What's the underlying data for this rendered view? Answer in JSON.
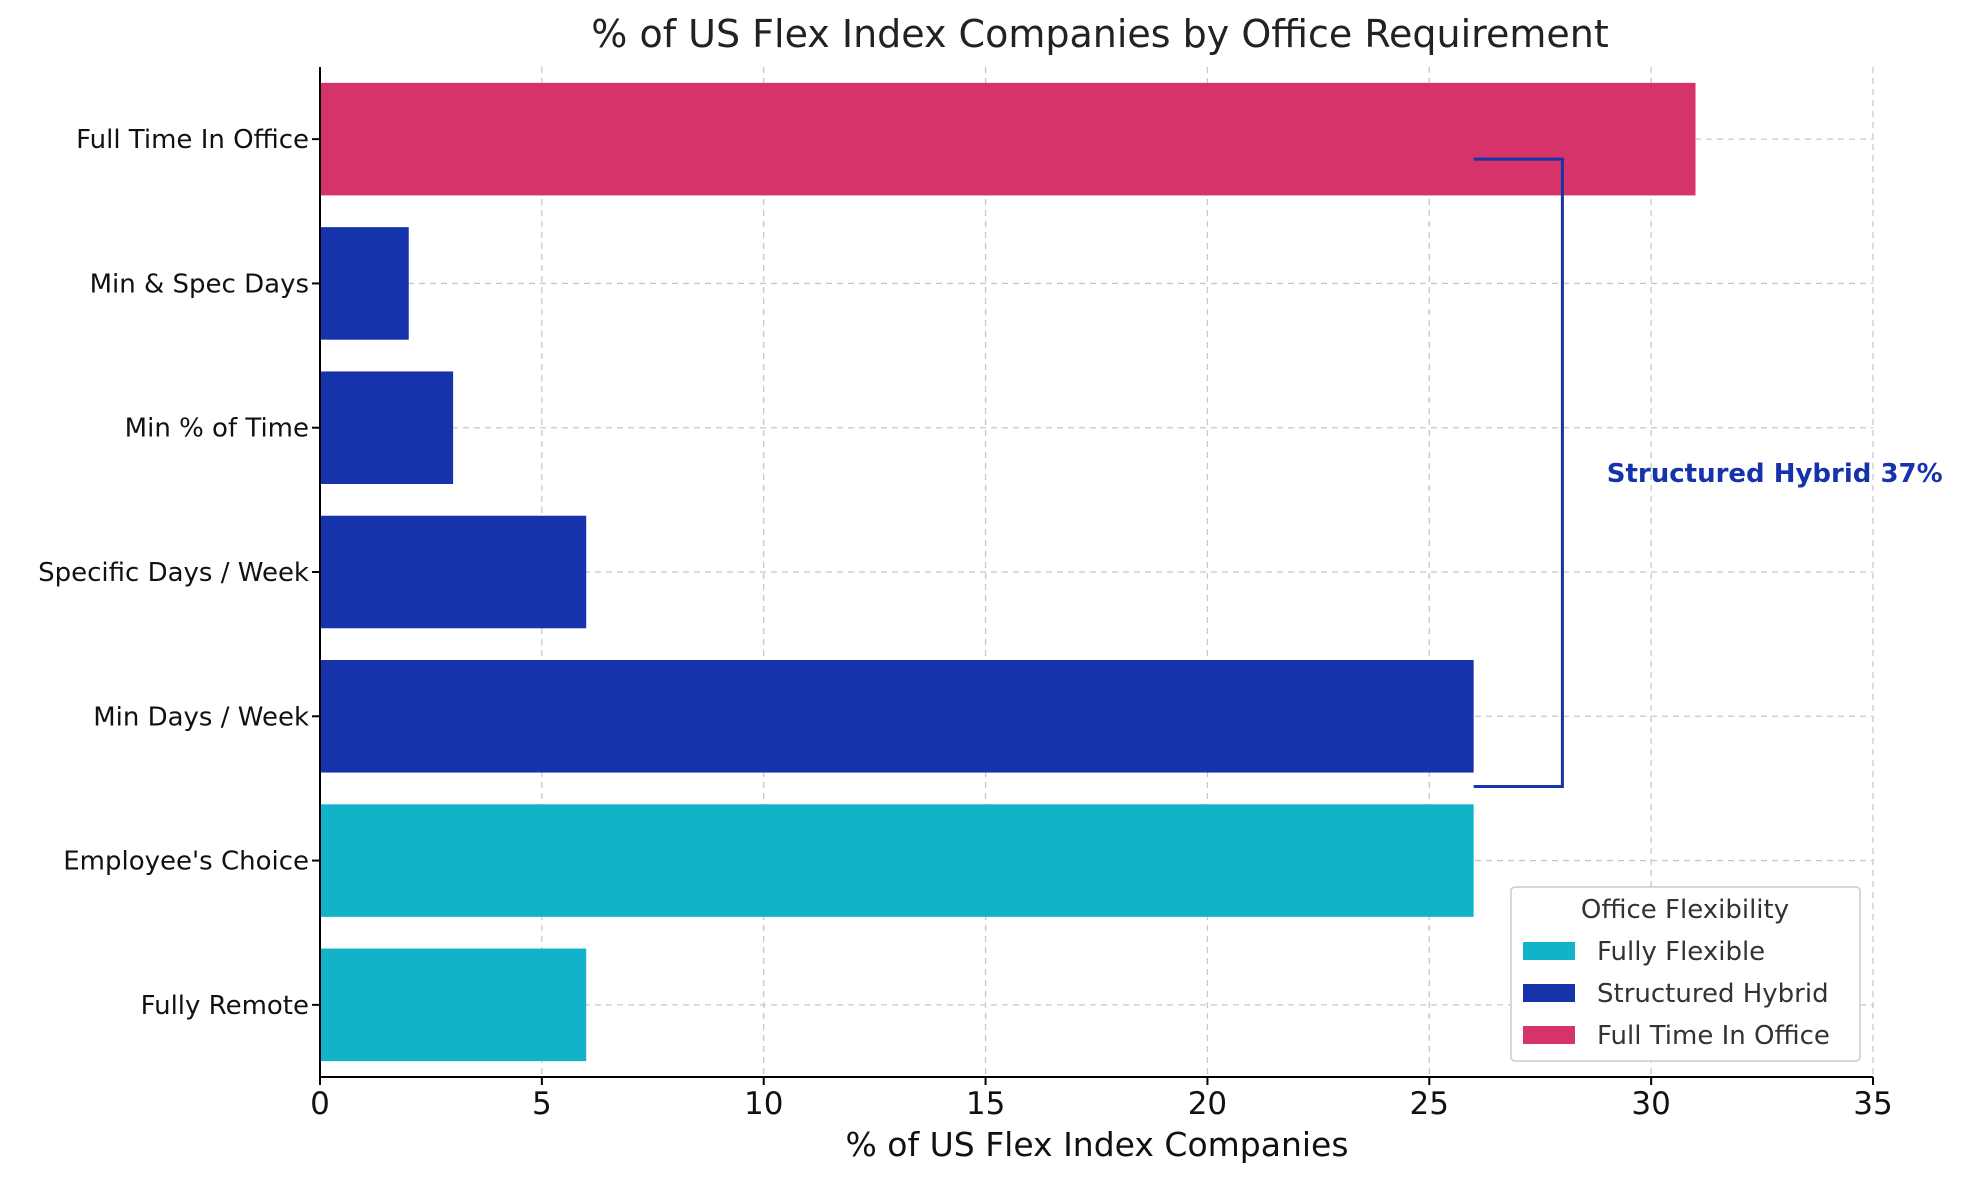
{
  "chart_data": {
    "type": "bar",
    "orientation": "horizontal",
    "title": "% of US Flex Index Companies by Office Requirement",
    "xlabel": "% of US Flex Index Companies",
    "ylabel": "",
    "xlim": [
      0,
      35
    ],
    "xticks": [
      "0",
      "5",
      "10",
      "15",
      "20",
      "25",
      "30",
      "35"
    ],
    "grid": true,
    "categories": [
      "Full Time In Office",
      "Min & Spec Days",
      "Min % of Time",
      "Specific Days / Week",
      "Min Days / Week",
      "Employee's Choice",
      "Fully Remote"
    ],
    "values": [
      31,
      2,
      3,
      6,
      26,
      26,
      6
    ],
    "bar_groups": [
      "Full Time In Office",
      "Structured Hybrid",
      "Structured Hybrid",
      "Structured Hybrid",
      "Structured Hybrid",
      "Fully Flexible",
      "Fully Flexible"
    ],
    "legend": {
      "title": "Office Flexibility",
      "placement": "bottom-right",
      "entries": [
        {
          "label": "Fully Flexible",
          "color": "#12b3c9"
        },
        {
          "label": "Structured Hybrid",
          "color": "#1733ab"
        },
        {
          "label": "Full Time In Office",
          "color": "#d6336b"
        }
      ]
    },
    "annotation": {
      "text": "Structured Hybrid 37%",
      "color": "#1733ab",
      "bracket_from_category": "Min & Spec Days",
      "bracket_to_category": "Min Days / Week",
      "bracket_x_start": 26,
      "bracket_x_end": 28,
      "text_x": 29
    }
  }
}
